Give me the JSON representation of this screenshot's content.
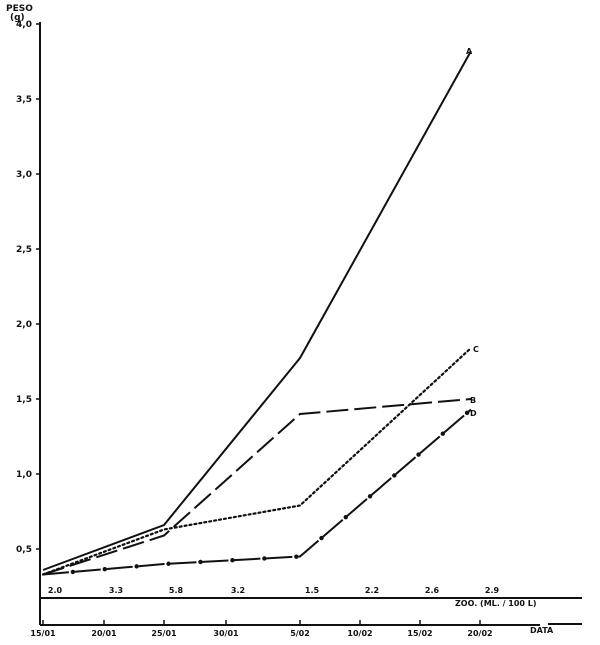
{
  "chart_data": {
    "type": "line",
    "title": "",
    "ylabel": "PESO (g)",
    "xlabel": "DATA",
    "secondary_axis_label": "ZOO. (ML. / 100 L)",
    "ylim": [
      0.3,
      4.0
    ],
    "yticks": [
      "4,0",
      "3,5",
      "3,0",
      "2,5",
      "2,0",
      "1,5",
      "1,0",
      "0,5"
    ],
    "x_ticks": [
      "15/01",
      "20/01",
      "25/01",
      "30/01",
      "5/02",
      "10/02",
      "15/02",
      "20/02"
    ],
    "zoo_values": [
      "2.0",
      "3.3",
      "5.8",
      "3.2",
      "1.5",
      "2.2",
      "2.6",
      "2.9"
    ],
    "grid": false,
    "legend_position": "inline labels at line ends",
    "series": [
      {
        "name": "A",
        "style": "solid",
        "x": [
          "15/01",
          "25/01",
          "5/02",
          "19/02"
        ],
        "values": [
          0.33,
          0.65,
          1.77,
          3.82
        ]
      },
      {
        "name": "B",
        "style": "long-dash",
        "x": [
          "15/01",
          "25/01",
          "5/02",
          "19/02"
        ],
        "values": [
          0.33,
          0.59,
          1.4,
          1.5
        ]
      },
      {
        "name": "C",
        "style": "dotted",
        "x": [
          "15/01",
          "25/01",
          "5/02",
          "19/02"
        ],
        "values": [
          0.33,
          0.63,
          0.79,
          1.84
        ]
      },
      {
        "name": "D",
        "style": "dash-dot",
        "x": [
          "15/01",
          "25/01",
          "5/02",
          "19/02"
        ],
        "values": [
          0.33,
          0.4,
          0.45,
          1.43
        ]
      }
    ]
  },
  "labels": {
    "y_title_1": "PESO",
    "y_title_2": "(g)",
    "x_title": "DATA",
    "zoo_title": "ZOO. (ML. / 100 L)",
    "series_A": "A",
    "series_B": "B",
    "series_C": "C",
    "series_D": "D"
  }
}
